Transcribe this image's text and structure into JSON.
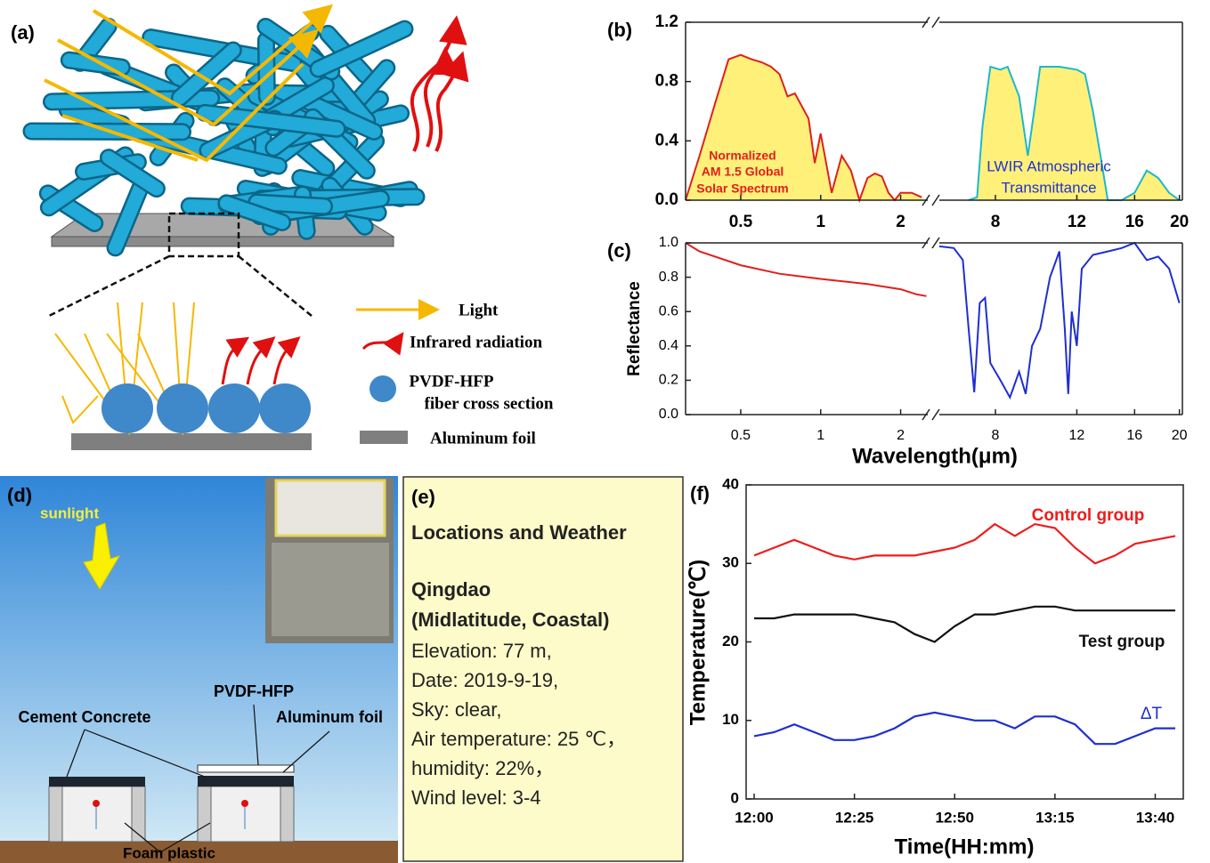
{
  "diagram_a": {
    "panel_label": "(a)",
    "legend": [
      "Light",
      "Infrared radiation",
      "PVDF-HFP",
      "fiber cross section",
      "Aluminum foil"
    ]
  },
  "diagram_d": {
    "panel_label": "(d)",
    "labels": [
      "sunlight",
      "PVDF-HFP",
      "Cement Concrete",
      "Aluminum foil",
      "Foam plastic"
    ]
  },
  "text_e": {
    "panel_label": "(e)",
    "heading": "Locations and Weather",
    "site": [
      "Qingdao",
      "(Midlatitude, Coastal)"
    ],
    "lines": [
      "Elevation: 77 m,",
      "Date: 2019-9-19,",
      "Sky: clear,",
      "Air temperature: 25 ℃，",
      "humidity: 22%，",
      "Wind level: 3-4"
    ]
  },
  "chart_data": [
    {
      "type": "line",
      "panel_label": "(b)",
      "xscale": "log",
      "x_segments": [
        {
          "xlim": [
            0.31,
            2.53
          ],
          "xticks": [
            0.5,
            1,
            2
          ]
        },
        {
          "xlim": [
            6.05,
            20.3
          ],
          "xticks": [
            8,
            12,
            16,
            20
          ]
        }
      ],
      "ylim": [
        0,
        1.2
      ],
      "yticks": [
        {
          "value": 0,
          "label": "0.0"
        },
        0.4,
        0.8,
        1.2
      ],
      "annotations": [
        {
          "text": [
            "Normalized",
            "AM 1.5 Global",
            "Solar Spectrum"
          ],
          "color": "#e0201c"
        },
        {
          "text": [
            "LWIR Atmospheric",
            "Transmittance"
          ],
          "color": "#2233cc"
        }
      ],
      "series": [
        {
          "segment": 0,
          "color": "#e0201c",
          "fill": "#fff07a",
          "x": [
            0.31,
            0.35,
            0.4,
            0.45,
            0.5,
            0.55,
            0.6,
            0.65,
            0.7,
            0.75,
            0.8,
            0.9,
            0.95,
            1.0,
            1.1,
            1.2,
            1.3,
            1.4,
            1.5,
            1.6,
            1.7,
            1.8,
            1.9,
            2.0,
            2.2,
            2.4
          ],
          "values": [
            0,
            0.3,
            0.65,
            0.95,
            0.98,
            0.95,
            0.93,
            0.9,
            0.85,
            0.7,
            0.72,
            0.55,
            0.25,
            0.45,
            0.05,
            0.3,
            0.2,
            0,
            0.15,
            0.18,
            0.16,
            0.05,
            0,
            0.05,
            0.05,
            0.02
          ]
        },
        {
          "segment": 1,
          "color": "#1cb8cc",
          "fill": "#fff07a",
          "x": [
            7.0,
            7.3,
            7.5,
            7.8,
            8.2,
            8.5,
            9.0,
            9.4,
            9.7,
            10,
            10.5,
            11,
            12,
            12.5,
            13,
            13.5,
            14,
            15,
            16,
            17,
            18,
            19,
            20
          ],
          "values": [
            0,
            0.02,
            0.5,
            0.9,
            0.88,
            0.9,
            0.7,
            0.3,
            0.6,
            0.9,
            0.9,
            0.9,
            0.88,
            0.85,
            0.6,
            0.3,
            0,
            0,
            0.05,
            0.2,
            0.15,
            0.05,
            0
          ]
        }
      ]
    },
    {
      "type": "line",
      "panel_label": "(c)",
      "xscale": "log",
      "xlabel": "Wavelength(μm)",
      "ylabel": "Reflectance",
      "x_segments": [
        {
          "xlim": [
            0.31,
            2.53
          ],
          "xticks": [
            0.5,
            1,
            2
          ]
        },
        {
          "xlim": [
            6.05,
            20.3
          ],
          "xticks": [
            8,
            12,
            16,
            20
          ]
        }
      ],
      "ylim": [
        0,
        1.0
      ],
      "yticks": [
        {
          "value": 0,
          "label": "0.0"
        },
        0.2,
        0.4,
        0.6,
        0.8,
        {
          "value": 1,
          "label": "1.0"
        }
      ],
      "series": [
        {
          "segment": 0,
          "color": "#e0201c",
          "x": [
            0.31,
            0.35,
            0.5,
            0.7,
            1.0,
            1.5,
            2.0,
            2.3,
            2.5
          ],
          "values": [
            1.0,
            0.95,
            0.87,
            0.82,
            0.79,
            0.76,
            0.73,
            0.7,
            0.69
          ]
        },
        {
          "segment": 1,
          "color": "#1f2fd0",
          "x": [
            6.05,
            6.5,
            6.8,
            7.0,
            7.2,
            7.4,
            7.6,
            7.8,
            8.2,
            8.6,
            9.0,
            9.3,
            9.6,
            10,
            10.5,
            11,
            11.3,
            11.5,
            11.7,
            12,
            12.3,
            13,
            14,
            15,
            16,
            17,
            18,
            19,
            20
          ],
          "values": [
            0.98,
            0.97,
            0.9,
            0.5,
            0.13,
            0.65,
            0.68,
            0.3,
            0.2,
            0.1,
            0.25,
            0.12,
            0.4,
            0.5,
            0.8,
            0.95,
            0.5,
            0.12,
            0.6,
            0.4,
            0.85,
            0.93,
            0.95,
            0.97,
            1.0,
            0.9,
            0.92,
            0.85,
            0.65
          ]
        }
      ]
    },
    {
      "type": "line",
      "panel_label": "(f)",
      "xlabel": "Time(HH:mm)",
      "ylabel": "Temperature(℃)",
      "xlim": [
        "11:58",
        "13:47"
      ],
      "xticks": [
        "12:00",
        "12:25",
        "12:50",
        "13:15",
        "13:40"
      ],
      "ylim": [
        0,
        40
      ],
      "yticks": [
        0,
        10,
        20,
        30,
        40
      ],
      "x": [
        "12:00",
        "12:05",
        "12:10",
        "12:15",
        "12:20",
        "12:25",
        "12:30",
        "12:35",
        "12:40",
        "12:45",
        "12:50",
        "12:55",
        "13:00",
        "13:05",
        "13:10",
        "13:15",
        "13:20",
        "13:25",
        "13:30",
        "13:35",
        "13:40",
        "13:45"
      ],
      "series": [
        {
          "name": "Control group",
          "color": "#ee1c1c",
          "values": [
            31,
            32,
            33,
            32,
            31,
            30.5,
            31,
            31,
            31,
            31.5,
            32,
            33,
            35,
            33.5,
            35,
            34.5,
            32,
            30,
            31,
            32.5,
            33,
            33.5
          ]
        },
        {
          "name": "Test group",
          "color": "#111111",
          "values": [
            23,
            23,
            23.5,
            23.5,
            23.5,
            23.5,
            23,
            22.5,
            21,
            20,
            22,
            23.5,
            23.5,
            24,
            24.5,
            24.5,
            24,
            24,
            24,
            24,
            24,
            24
          ]
        },
        {
          "name": "ΔT",
          "color": "#1f2fd0",
          "values": [
            8,
            8.5,
            9.5,
            8.5,
            7.5,
            7.5,
            8,
            9,
            10.5,
            11,
            10.5,
            10,
            10,
            9,
            10.5,
            10.5,
            9.5,
            7,
            7,
            8,
            9,
            9
          ]
        }
      ]
    }
  ]
}
